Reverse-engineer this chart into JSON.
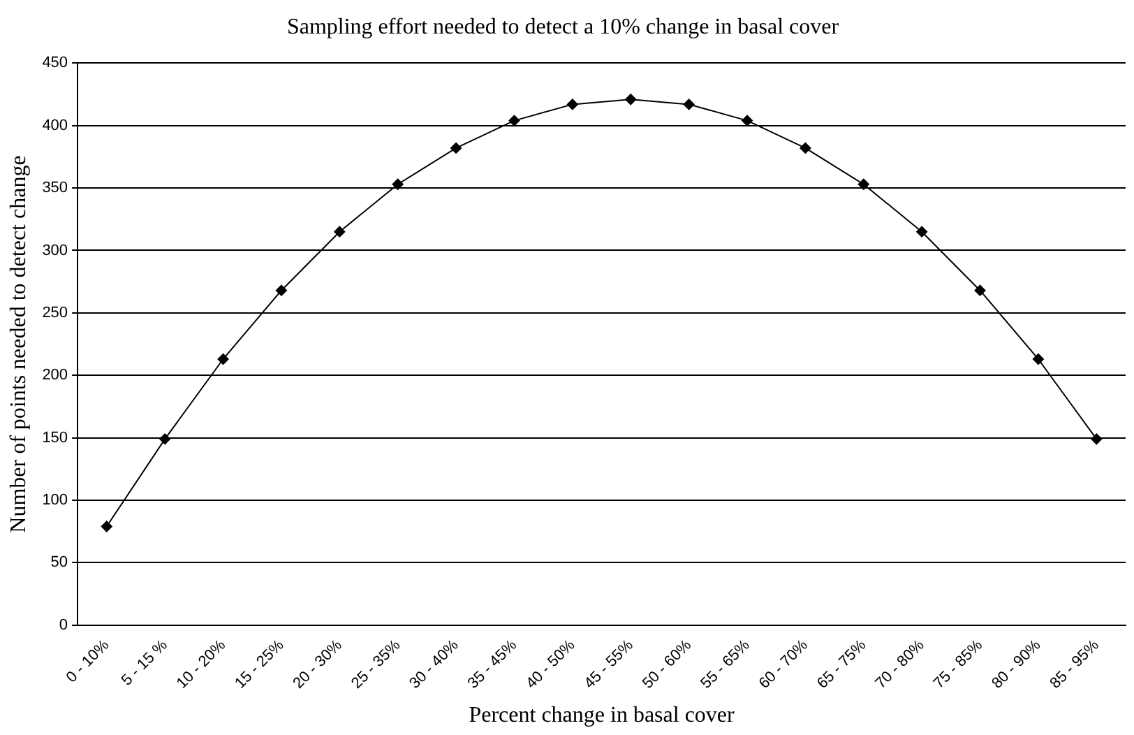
{
  "chart_data": {
    "type": "line",
    "title": "Sampling effort needed to detect a 10% change in basal cover",
    "xlabel": "Percent change in basal cover",
    "ylabel": "Number of points needed to detect change",
    "categories": [
      "0 - 10%",
      "5 - 15 %",
      "10 - 20%",
      "15 - 25%",
      "20 - 30%",
      "25 - 35%",
      "30 - 40%",
      "35 - 45%",
      "40 - 50%",
      "45 - 55%",
      "50 - 60%",
      "55 - 65%",
      "60 - 70%",
      "65 - 75%",
      "70 - 80%",
      "75 - 85%",
      "80 - 90%",
      "85 - 95%"
    ],
    "series": [
      {
        "color": "#000000",
        "values": [
          79,
          149,
          213,
          268,
          315,
          353,
          382,
          404,
          417,
          421,
          417,
          404,
          382,
          353,
          315,
          268,
          213,
          149
        ]
      }
    ],
    "ylim": [
      0,
      450
    ],
    "yticks": [
      0,
      50,
      100,
      150,
      200,
      250,
      300,
      350,
      400,
      450
    ],
    "grid": "y",
    "legend": false,
    "marker": "diamond",
    "line_style": "solid"
  }
}
